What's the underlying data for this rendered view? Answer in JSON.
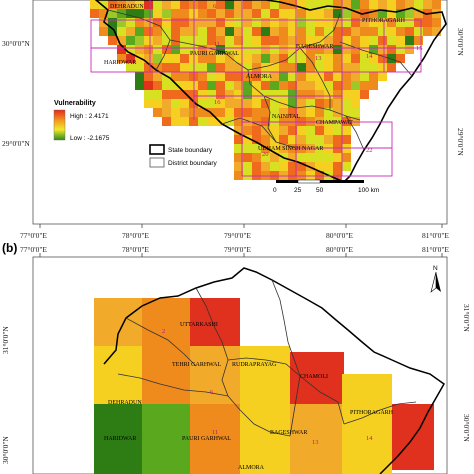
{
  "top_map": {
    "ticks_x": [
      "77°0'0\"E",
      "78°0'0\"E",
      "79°0'0\"E",
      "80°0'0\"E",
      "81°0'0\"E"
    ],
    "ticks_y": [
      "30°0'0\"N",
      "29°0'0\"N"
    ],
    "districts": [
      "DEHRADUN",
      "HARIDWAR",
      "PAURI GARHWAL",
      "ALMORA",
      "BAGESHWAR",
      "PITHORAGARH",
      "NAINITAL",
      "CHAMPAWAT",
      "UDHAM SINGH NAGAR"
    ],
    "grid_numbers": [
      "6",
      "11",
      "13",
      "14",
      "15",
      "16",
      "20",
      "22"
    ],
    "legend": {
      "title": "Vulnerability",
      "high": "High : 2.4171",
      "low": "Low : -2.1675",
      "state_boundary": "State boundary",
      "district_boundary": "District boundary"
    },
    "scalebar": [
      "0",
      "25",
      "50",
      "100 km"
    ]
  },
  "bottom_map": {
    "panel_label": "(b)",
    "ticks_x": [
      "77°0'0\"E",
      "78°0'0\"E",
      "79°0'0\"E",
      "80°0'0\"E",
      "81°0'0\"E"
    ],
    "ticks_y": [
      "31°0'0\"N",
      "30°0'0\"N"
    ],
    "districts": [
      "UTTARKASHI",
      "TEHRI GARHWAL",
      "RUDRAPRAYAG",
      "CHAMOLI",
      "DEHRADUN",
      "PAURI GARHWAL",
      "BAGESHWAR",
      "PITHORAGARH",
      "HARIDWAR",
      "ALMORA"
    ],
    "grid_numbers": [
      "2",
      "6",
      "11",
      "13",
      "14"
    ],
    "north_label": "N"
  },
  "colors": {
    "grid_magenta": "#c82db8",
    "cell_red": "#e0301e",
    "cell_orange": "#ef8a1c",
    "cell_yellow": "#f5d020",
    "cell_green": "#2e7d14"
  }
}
